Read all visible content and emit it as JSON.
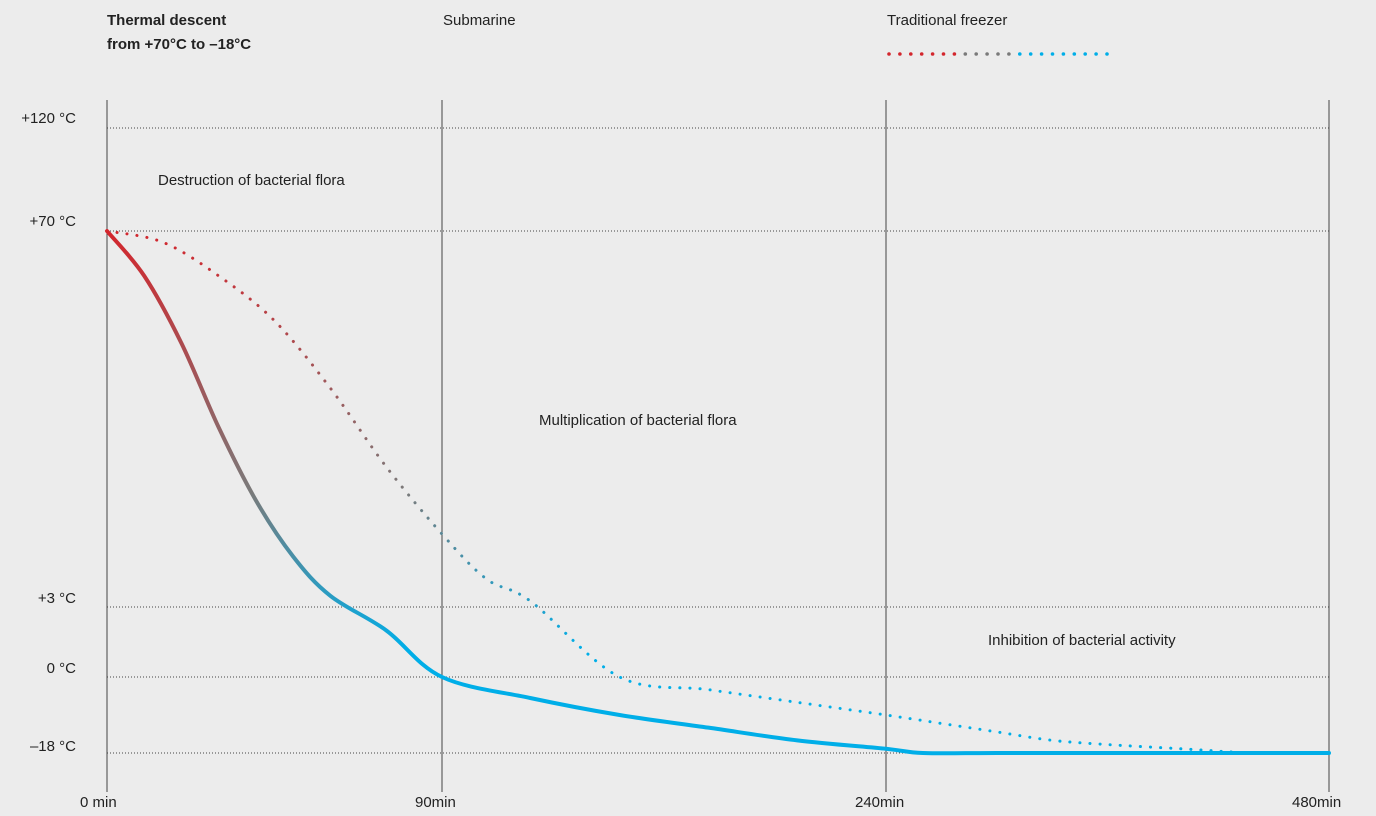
{
  "title": {
    "line1": "Thermal descent",
    "line2": "from +70°C to –18°C"
  },
  "legend": {
    "submarine": "Submarine",
    "freezer": "Traditional freezer"
  },
  "colors": {
    "hot": "#d3262d",
    "mid": "#7a7a7a",
    "cold": "#00aee8",
    "grid": "#444444"
  },
  "zones": {
    "destruction": "Destruction of bacterial flora",
    "multiplication": "Multiplication of bacterial flora",
    "inhibition": "Inhibition of bacterial activity"
  },
  "chart_data": {
    "type": "line",
    "x_tick_labels": [
      "0 min",
      "90min",
      "240min",
      "480min"
    ],
    "x_tick_values": [
      0,
      90,
      240,
      480
    ],
    "y_tick_labels": [
      "+120 °C",
      "+70 °C",
      "+3 °C",
      "0 °C",
      "–18 °C"
    ],
    "y_tick_values": [
      120,
      70,
      3,
      0,
      -18
    ],
    "series": [
      {
        "name": "Submarine",
        "style": "solid",
        "x": [
          0,
          10,
          20,
          30,
          40,
          50,
          60,
          75,
          90,
          120,
          150,
          180,
          210,
          240,
          260,
          300,
          360,
          420,
          480
        ],
        "y": [
          70,
          62,
          50,
          35,
          22,
          12,
          5,
          2,
          0,
          -5,
          -9,
          -12,
          -15,
          -17,
          -18,
          -18,
          -18,
          -18,
          -18
        ]
      },
      {
        "name": "Traditional freezer",
        "style": "dotted",
        "x": [
          0,
          15,
          30,
          45,
          60,
          75,
          90,
          105,
          120,
          150,
          180,
          210,
          240,
          270,
          300,
          330,
          360,
          400,
          440,
          480
        ],
        "y": [
          70,
          68,
          62,
          54,
          42,
          28,
          16,
          8,
          4,
          0,
          -3,
          -6,
          -9,
          -11,
          -13,
          -15,
          -16,
          -17,
          -18,
          -18
        ]
      }
    ]
  }
}
